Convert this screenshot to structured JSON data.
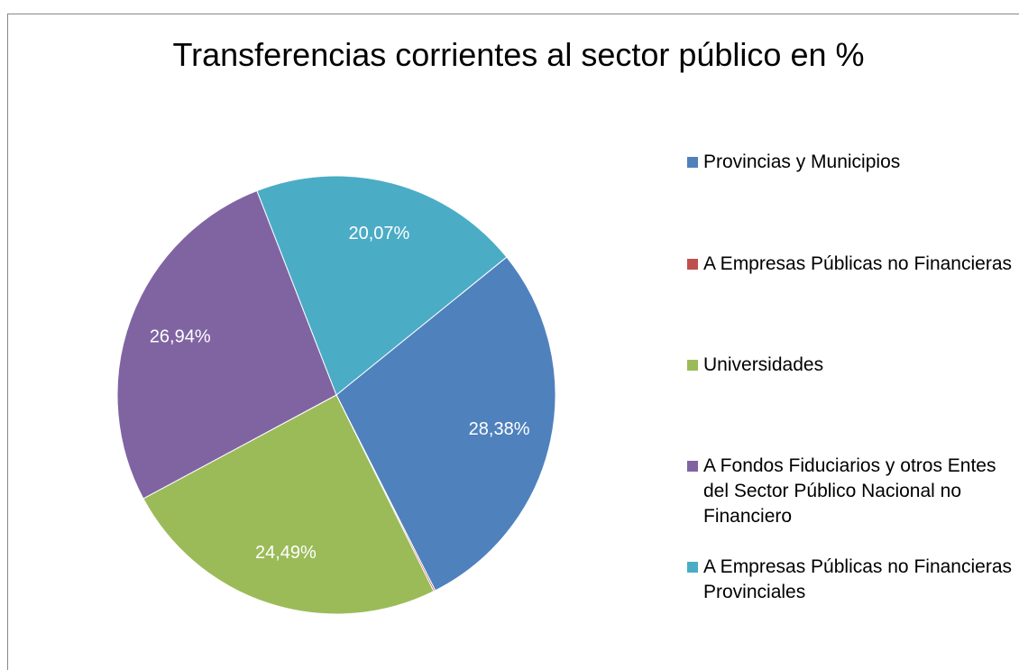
{
  "chart_data": {
    "type": "pie",
    "title": "Transferencias corrientes al sector público en %",
    "categories": [
      "Provincias y Municipios",
      "A Empresas Públicas no Financieras",
      "Universidades",
      "A Fondos Fiduciarios y otros Entes del Sector Público Nacional no Financiero",
      "A Empresas Públicas no Financieras Provinciales"
    ],
    "values": [
      28.38,
      0.12,
      24.49,
      26.94,
      20.07
    ],
    "value_labels": [
      "28,38%",
      null,
      "24,49%",
      "26,94%",
      "20,07%"
    ],
    "colors": [
      "#4f81bd",
      "#c0504d",
      "#9bbb59",
      "#8064a2",
      "#4bacc6"
    ],
    "start_angle": 51,
    "legend": "right"
  }
}
